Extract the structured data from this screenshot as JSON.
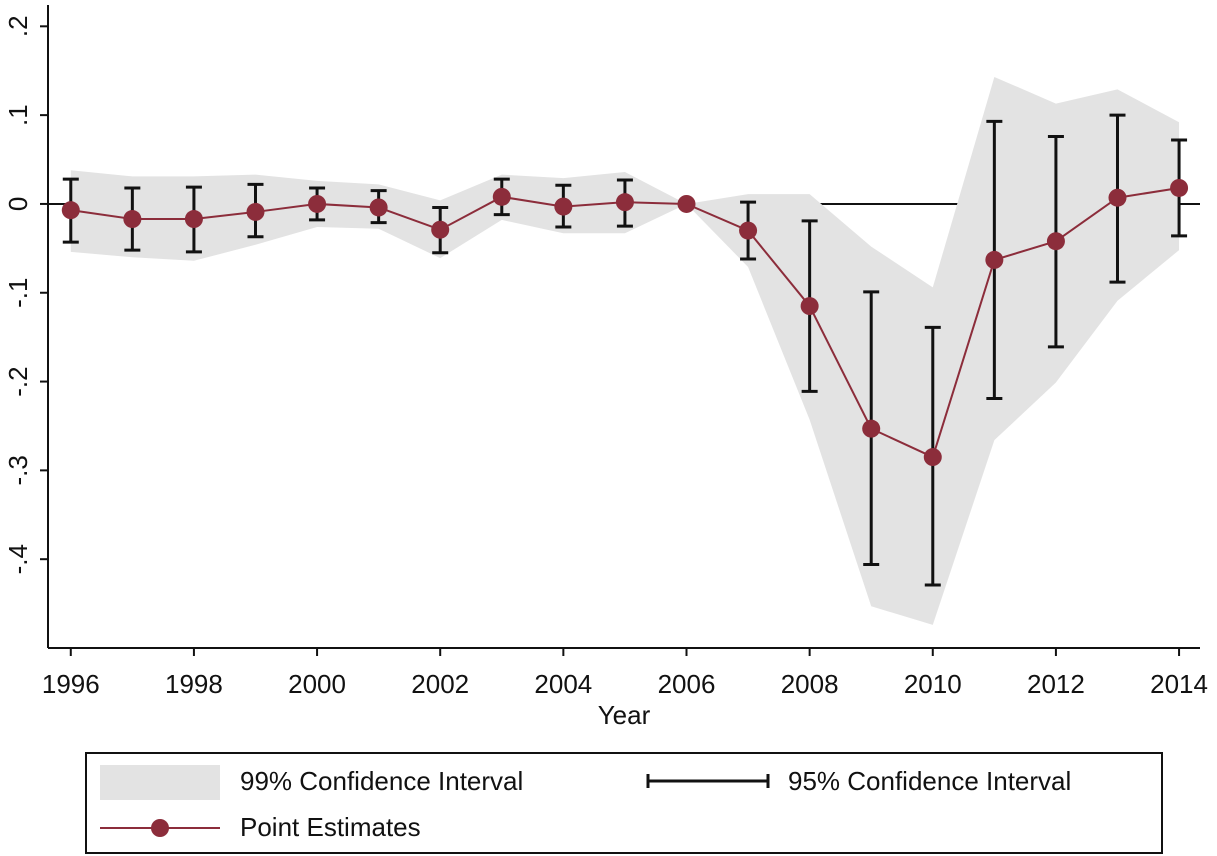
{
  "chart_data": {
    "type": "line",
    "xlabel": "Year",
    "x": [
      1996,
      1997,
      1998,
      1999,
      2000,
      2001,
      2002,
      2003,
      2004,
      2005,
      2006,
      2007,
      2008,
      2009,
      2010,
      2011,
      2012,
      2013,
      2014
    ],
    "xlim": [
      1995.63,
      2014.34
    ],
    "xticks": [
      1996,
      1998,
      2000,
      2002,
      2004,
      2006,
      2008,
      2010,
      2012,
      2014
    ],
    "ylim": [
      -0.5,
      0.224
    ],
    "yticks": [
      {
        "value": -0.4,
        "label": "-.4"
      },
      {
        "value": -0.3,
        "label": "-.3"
      },
      {
        "value": -0.2,
        "label": "-.2"
      },
      {
        "value": -0.1,
        "label": "-.1"
      },
      0,
      {
        "value": 0.1,
        "label": ".1"
      },
      {
        "value": 0.2,
        "label": ".2"
      }
    ],
    "reference_line": 0,
    "series": [
      {
        "name": "99% Confidence Interval",
        "kind": "band",
        "color": "#e3e3e3",
        "upper": [
          0.038,
          0.031,
          0.031,
          0.033,
          0.026,
          0.022,
          0.004,
          0.033,
          0.029,
          0.036,
          0,
          0.011,
          0.011,
          -0.048,
          -0.094,
          0.143,
          0.113,
          0.129,
          0.092
        ],
        "lower": [
          -0.054,
          -0.06,
          -0.064,
          -0.046,
          -0.026,
          -0.028,
          -0.061,
          -0.018,
          -0.033,
          -0.033,
          0,
          -0.071,
          -0.243,
          -0.453,
          -0.474,
          -0.266,
          -0.201,
          -0.109,
          -0.052
        ]
      },
      {
        "name": "95% Confidence Interval",
        "kind": "errorbar",
        "color": "#111111",
        "upper": [
          0.028,
          0.018,
          0.019,
          0.022,
          0.018,
          0.015,
          -0.004,
          0.028,
          0.021,
          0.027,
          null,
          0.002,
          -0.019,
          -0.099,
          -0.139,
          0.093,
          0.076,
          0.1,
          0.072
        ],
        "lower": [
          -0.043,
          -0.052,
          -0.054,
          -0.037,
          -0.018,
          -0.021,
          -0.055,
          -0.012,
          -0.026,
          -0.025,
          null,
          -0.062,
          -0.211,
          -0.406,
          -0.429,
          -0.219,
          -0.161,
          -0.088,
          -0.036
        ]
      },
      {
        "name": "Point Estimates",
        "kind": "line",
        "color": "#8c2d3b",
        "values": [
          -0.007,
          -0.017,
          -0.017,
          -0.009,
          0.0,
          -0.004,
          -0.029,
          0.008,
          -0.003,
          0.002,
          0,
          -0.03,
          -0.115,
          -0.253,
          -0.285,
          -0.063,
          -0.042,
          0.007,
          0.018
        ]
      }
    ]
  }
}
